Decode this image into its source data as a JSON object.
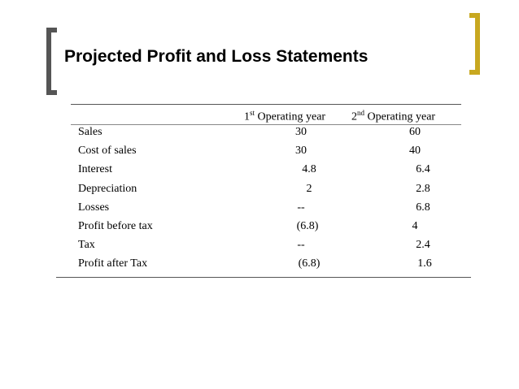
{
  "title": "Projected Profit and Loss Statements",
  "columns": {
    "year1": {
      "ordinal": "1",
      "suffix": "st",
      "label": "Operating year"
    },
    "year2": {
      "ordinal": "2",
      "suffix": "nd",
      "label": "Operating year"
    }
  },
  "rows": [
    {
      "label": "Sales",
      "y1": "30",
      "y2": "60"
    },
    {
      "label": "Cost of sales",
      "y1": "30",
      "y2": "40"
    },
    {
      "label": "Interest",
      "y1": "4.8",
      "y2": "6.4"
    },
    {
      "label": "Depreciation",
      "y1": "2",
      "y2": "2.8"
    },
    {
      "label": "Losses",
      "y1": "--",
      "y2": "6.8"
    },
    {
      "label": "Profit before tax",
      "y1": "(6.8)",
      "y2": "4"
    },
    {
      "label": "Tax",
      "y1": "--",
      "y2": "2.4"
    },
    {
      "label": "Profit after Tax",
      "y1": "(6.8)",
      "y2": "1.6"
    }
  ],
  "colors": {
    "left_bracket": "#555555",
    "right_bracket": "#c8a820"
  }
}
